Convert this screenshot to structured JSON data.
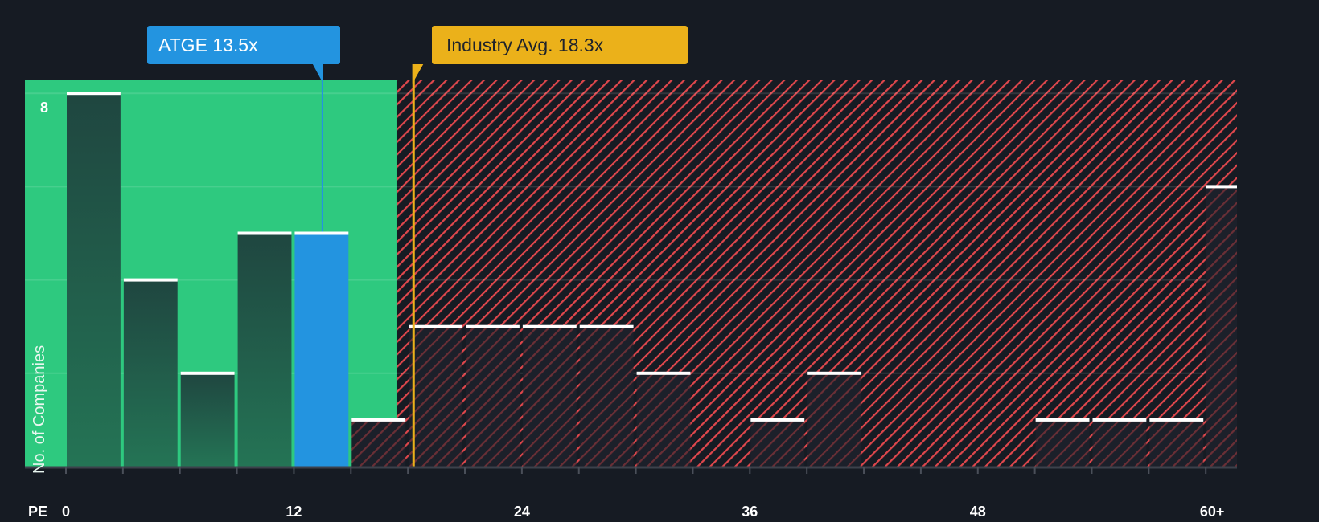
{
  "callouts": {
    "company": {
      "label": "ATGE 13.5x",
      "value": 13.5,
      "color": "#2394e0"
    },
    "industry": {
      "label": "Industry Avg. 18.3x",
      "value": 18.3,
      "color": "#ebb11a"
    }
  },
  "axis": {
    "x_title": "PE",
    "y_title": "No. of Companies",
    "y_tick_label": "8",
    "x_ticks": [
      {
        "value": 0,
        "label": "0"
      },
      {
        "value": 12,
        "label": "12"
      },
      {
        "value": 24,
        "label": "24"
      },
      {
        "value": 36,
        "label": "36"
      },
      {
        "value": 48,
        "label": "48"
      },
      {
        "value": 60,
        "label": "60+"
      }
    ]
  },
  "colors": {
    "background": "#161b23",
    "undervalued_zone": "#2ec97f",
    "overvalued_hatch": "#e0474c",
    "bar_green_zone": "#1f4a40",
    "bar_red_zone": "#1c202a",
    "company_bar": "#2394e0",
    "bar_cap": "#ffffff"
  },
  "chart_data": {
    "type": "bar",
    "title": "",
    "xlabel": "PE",
    "ylabel": "No. of Companies",
    "bin_width": 3,
    "categories": [
      "0-3",
      "3-6",
      "6-9",
      "9-12",
      "12-15",
      "15-18",
      "18-21",
      "21-24",
      "24-27",
      "27-30",
      "30-33",
      "33-36",
      "36-39",
      "39-42",
      "42-45",
      "45-48",
      "48-51",
      "51-54",
      "54-57",
      "57-60",
      "60+"
    ],
    "values": [
      8,
      4,
      2,
      5,
      5,
      1,
      3,
      3,
      3,
      3,
      2,
      0,
      1,
      2,
      0,
      0,
      0,
      1,
      1,
      1,
      6
    ],
    "highlight_bin": "12-15",
    "company": {
      "name": "ATGE",
      "pe": 13.5
    },
    "industry_average_pe": 18.3,
    "undervalued_zone_end_pe": 17.4,
    "xlim": [
      0,
      61.5
    ],
    "ylim": [
      0,
      8.3
    ],
    "y_gridlines": [
      2,
      4,
      6,
      8
    ],
    "grid": true,
    "legend": null
  }
}
